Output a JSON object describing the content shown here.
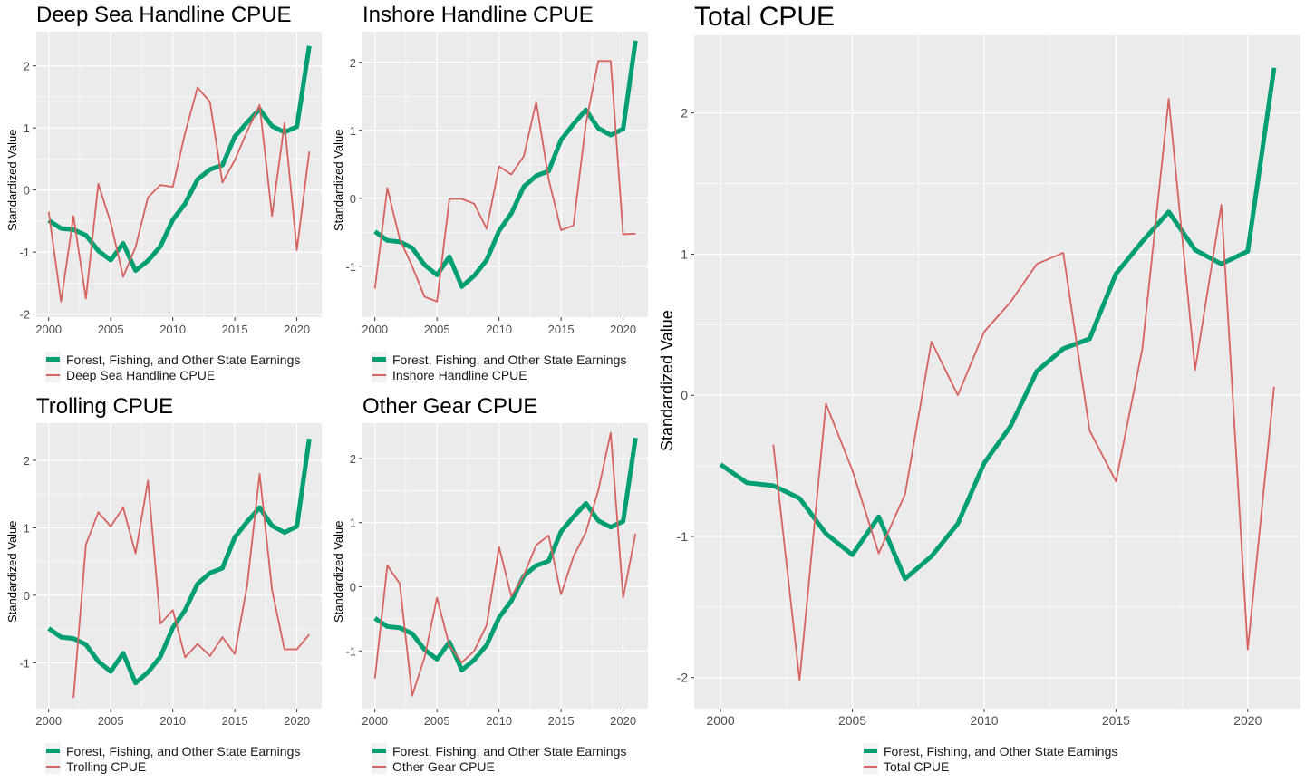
{
  "colors": {
    "earnings": "#009E73",
    "cpue": "#D6625E",
    "panel_bg": "#EBEBEB",
    "grid": "#FFFFFF"
  },
  "chart_data": [
    {
      "id": "deep",
      "type": "line",
      "title": "Deep Sea Handline CPUE",
      "ylabel": "Standardized Value",
      "xlabel": "",
      "xlim": [
        1999,
        2022
      ],
      "ylim": [
        -2.05,
        2.55
      ],
      "xticks": [
        2000,
        2005,
        2010,
        2015,
        2020
      ],
      "yticks": [
        -2,
        -1,
        0,
        1,
        2
      ],
      "grid": true,
      "legend_position": "bottom",
      "series": [
        {
          "name": "Forest, Fishing, and Other State Earnings",
          "role": "earnings",
          "x": [
            2000,
            2001,
            2002,
            2003,
            2004,
            2005,
            2006,
            2007,
            2008,
            2009,
            2010,
            2011,
            2012,
            2013,
            2014,
            2015,
            2016,
            2017,
            2018,
            2019,
            2020,
            2021
          ],
          "y": [
            -0.49,
            -0.62,
            -0.64,
            -0.73,
            -0.98,
            -1.13,
            -0.86,
            -1.3,
            -1.14,
            -0.91,
            -0.48,
            -0.22,
            0.17,
            0.33,
            0.4,
            0.86,
            1.09,
            1.3,
            1.03,
            0.93,
            1.02,
            2.32
          ]
        },
        {
          "name": "Deep Sea Handline CPUE",
          "role": "cpue",
          "x": [
            2000,
            2001,
            2002,
            2003,
            2004,
            2005,
            2006,
            2007,
            2008,
            2009,
            2010,
            2011,
            2012,
            2013,
            2014,
            2015,
            2016,
            2017,
            2018,
            2019,
            2020,
            2021
          ],
          "y": [
            -0.35,
            -1.8,
            -0.42,
            -1.75,
            0.1,
            -0.53,
            -1.4,
            -0.92,
            -0.12,
            0.08,
            0.05,
            0.92,
            1.65,
            1.42,
            0.12,
            0.48,
            0.95,
            1.37,
            -0.42,
            1.08,
            -0.97,
            0.62
          ]
        }
      ]
    },
    {
      "id": "inshore",
      "type": "line",
      "title": "Inshore Handline CPUE",
      "ylabel": "Standardized Value",
      "xlabel": "",
      "xlim": [
        1999,
        2022
      ],
      "ylim": [
        -1.75,
        2.45
      ],
      "xticks": [
        2000,
        2005,
        2010,
        2015,
        2020
      ],
      "yticks": [
        -1,
        0,
        1,
        2
      ],
      "grid": true,
      "legend_position": "bottom",
      "series": [
        {
          "name": "Forest, Fishing, and Other State Earnings",
          "role": "earnings",
          "x": [
            2000,
            2001,
            2002,
            2003,
            2004,
            2005,
            2006,
            2007,
            2008,
            2009,
            2010,
            2011,
            2012,
            2013,
            2014,
            2015,
            2016,
            2017,
            2018,
            2019,
            2020,
            2021
          ],
          "y": [
            -0.49,
            -0.62,
            -0.64,
            -0.73,
            -0.98,
            -1.13,
            -0.86,
            -1.3,
            -1.14,
            -0.91,
            -0.48,
            -0.22,
            0.17,
            0.33,
            0.4,
            0.86,
            1.09,
            1.3,
            1.03,
            0.93,
            1.02,
            2.32
          ]
        },
        {
          "name": "Inshore Handline CPUE",
          "role": "cpue",
          "x": [
            2000,
            2001,
            2002,
            2003,
            2004,
            2005,
            2006,
            2007,
            2008,
            2009,
            2010,
            2011,
            2012,
            2013,
            2014,
            2015,
            2016,
            2017,
            2018,
            2019,
            2020,
            2021
          ],
          "y": [
            -1.33,
            0.15,
            -0.6,
            -1.0,
            -1.45,
            -1.52,
            -0.01,
            -0.01,
            -0.08,
            -0.45,
            0.47,
            0.35,
            0.62,
            1.42,
            0.28,
            -0.47,
            -0.4,
            1.1,
            2.02,
            2.02,
            -0.53,
            -0.52
          ]
        }
      ]
    },
    {
      "id": "troll",
      "type": "line",
      "title": "Trolling CPUE",
      "ylabel": "Standardized Value",
      "xlabel": "",
      "xlim": [
        1999,
        2022
      ],
      "ylim": [
        -1.68,
        2.55
      ],
      "xticks": [
        2000,
        2005,
        2010,
        2015,
        2020
      ],
      "yticks": [
        -1,
        0,
        1,
        2
      ],
      "grid": true,
      "legend_position": "bottom",
      "series": [
        {
          "name": "Forest, Fishing, and Other State Earnings",
          "role": "earnings",
          "x": [
            2000,
            2001,
            2002,
            2003,
            2004,
            2005,
            2006,
            2007,
            2008,
            2009,
            2010,
            2011,
            2012,
            2013,
            2014,
            2015,
            2016,
            2017,
            2018,
            2019,
            2020,
            2021
          ],
          "y": [
            -0.49,
            -0.62,
            -0.64,
            -0.73,
            -0.98,
            -1.13,
            -0.86,
            -1.3,
            -1.14,
            -0.91,
            -0.48,
            -0.22,
            0.17,
            0.33,
            0.4,
            0.86,
            1.09,
            1.3,
            1.03,
            0.93,
            1.02,
            2.32
          ]
        },
        {
          "name": "Trolling CPUE",
          "role": "cpue",
          "x": [
            2002,
            2003,
            2004,
            2005,
            2006,
            2007,
            2008,
            2009,
            2010,
            2011,
            2012,
            2013,
            2014,
            2015,
            2016,
            2017,
            2018,
            2019,
            2020,
            2021
          ],
          "y": [
            -1.52,
            0.75,
            1.23,
            1.02,
            1.3,
            0.62,
            1.7,
            -0.42,
            -0.22,
            -0.92,
            -0.72,
            -0.9,
            -0.62,
            -0.87,
            0.15,
            1.8,
            0.08,
            -0.8,
            -0.8,
            -0.58
          ]
        }
      ]
    },
    {
      "id": "other",
      "type": "line",
      "title": "Other Gear CPUE",
      "ylabel": "Standardized Value",
      "xlabel": "",
      "xlim": [
        1999,
        2022
      ],
      "ylim": [
        -1.9,
        2.55
      ],
      "xticks": [
        2000,
        2005,
        2010,
        2015,
        2020
      ],
      "yticks": [
        -1,
        0,
        1,
        2
      ],
      "grid": true,
      "legend_position": "bottom",
      "series": [
        {
          "name": "Forest, Fishing, and Other State Earnings",
          "role": "earnings",
          "x": [
            2000,
            2001,
            2002,
            2003,
            2004,
            2005,
            2006,
            2007,
            2008,
            2009,
            2010,
            2011,
            2012,
            2013,
            2014,
            2015,
            2016,
            2017,
            2018,
            2019,
            2020,
            2021
          ],
          "y": [
            -0.49,
            -0.62,
            -0.64,
            -0.73,
            -0.98,
            -1.13,
            -0.86,
            -1.3,
            -1.14,
            -0.91,
            -0.48,
            -0.22,
            0.17,
            0.33,
            0.4,
            0.86,
            1.09,
            1.3,
            1.03,
            0.93,
            1.02,
            2.32
          ]
        },
        {
          "name": "Other Gear CPUE",
          "role": "cpue",
          "x": [
            2000,
            2001,
            2002,
            2003,
            2004,
            2005,
            2006,
            2007,
            2008,
            2009,
            2010,
            2011,
            2012,
            2013,
            2014,
            2015,
            2016,
            2017,
            2018,
            2019,
            2020,
            2021
          ],
          "y": [
            -1.43,
            0.33,
            0.05,
            -1.7,
            -1.1,
            -0.17,
            -0.92,
            -1.18,
            -1.0,
            -0.6,
            0.62,
            -0.15,
            0.18,
            0.65,
            0.8,
            -0.12,
            0.47,
            0.85,
            1.5,
            2.4,
            -0.17,
            0.83
          ]
        }
      ]
    },
    {
      "id": "total",
      "type": "line",
      "title": "Total CPUE",
      "ylabel": "Standardized Value",
      "xlabel": "",
      "xlim": [
        1999,
        2022
      ],
      "ylim": [
        -2.22,
        2.55
      ],
      "xticks": [
        2000,
        2005,
        2010,
        2015,
        2020
      ],
      "yticks": [
        -2,
        -1,
        0,
        1,
        2
      ],
      "grid": true,
      "legend_position": "bottom",
      "series": [
        {
          "name": "Forest, Fishing, and Other State Earnings",
          "role": "earnings",
          "x": [
            2000,
            2001,
            2002,
            2003,
            2004,
            2005,
            2006,
            2007,
            2008,
            2009,
            2010,
            2011,
            2012,
            2013,
            2014,
            2015,
            2016,
            2017,
            2018,
            2019,
            2020,
            2021
          ],
          "y": [
            -0.49,
            -0.62,
            -0.64,
            -0.73,
            -0.98,
            -1.13,
            -0.86,
            -1.3,
            -1.14,
            -0.91,
            -0.48,
            -0.22,
            0.17,
            0.33,
            0.4,
            0.86,
            1.09,
            1.3,
            1.03,
            0.93,
            1.02,
            2.32
          ]
        },
        {
          "name": "Total CPUE",
          "role": "cpue",
          "x": [
            2002,
            2003,
            2004,
            2005,
            2006,
            2007,
            2008,
            2009,
            2010,
            2011,
            2012,
            2013,
            2014,
            2015,
            2016,
            2017,
            2018,
            2019,
            2020,
            2021
          ],
          "y": [
            -0.35,
            -2.02,
            -0.06,
            -0.53,
            -1.12,
            -0.7,
            0.38,
            0.0,
            0.45,
            0.66,
            0.93,
            1.01,
            -0.25,
            -0.61,
            0.33,
            2.1,
            0.18,
            1.35,
            -1.8,
            0.06
          ]
        }
      ]
    }
  ]
}
